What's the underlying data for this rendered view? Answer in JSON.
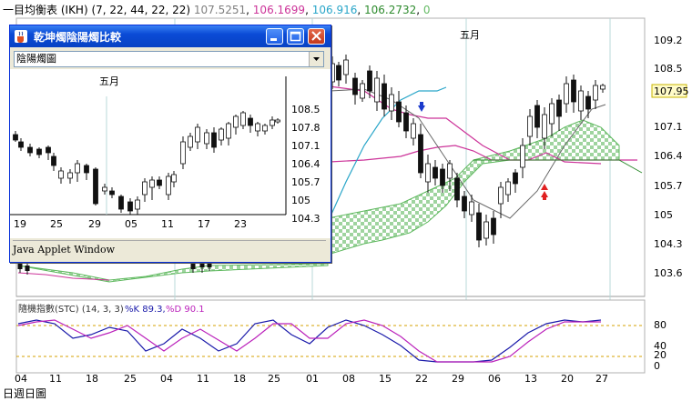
{
  "header": {
    "title": "一目均衡表",
    "params": "(IKH) (7, 22, 44, 22, 22)",
    "values": [
      {
        "text": "107.5251",
        "color": "#7f7f7f"
      },
      {
        "text": "106.1699",
        "color": "#cc3399"
      },
      {
        "text": "106.916",
        "color": "#2aa6c9"
      },
      {
        "text": "106.2732",
        "color": "#2e8b2e"
      },
      {
        "text": "0",
        "color": "#66bb66"
      }
    ]
  },
  "main_chart": {
    "month_label": "五月",
    "price_ticks": [
      "109.2",
      "108.5",
      "107.95",
      "107.1",
      "106.4",
      "105.7",
      "105",
      "104.3",
      "103.6"
    ],
    "current_price": "107.95",
    "date_ticks": [
      "04",
      "11",
      "18",
      "25",
      "04",
      "11",
      "18",
      "25",
      "01",
      "08",
      "15",
      "22",
      "29",
      "06",
      "13",
      "20",
      "27"
    ]
  },
  "stochastic": {
    "label": "隨機指數(STC) (14, 3, 3)",
    "k_label": "%K 89.3,",
    "d_label": "%D 90.1",
    "ticks": [
      "80",
      "40",
      "20",
      "0"
    ],
    "colors": {
      "k": "#1a1aaa",
      "d": "#bb22bb"
    }
  },
  "applet": {
    "title": "乾坤燭陰陽燭比較",
    "combo_value": "陰陽燭圖",
    "month_label": "五月",
    "price_ticks": [
      "108.5",
      "107.8",
      "107.1",
      "106.4",
      "105.7",
      "105",
      "104.3"
    ],
    "date_ticks": [
      "19",
      "25",
      "29",
      "05",
      "11",
      "17",
      "23"
    ],
    "status": "Java Applet Window"
  },
  "footer": {
    "text": "日週日圖"
  }
}
